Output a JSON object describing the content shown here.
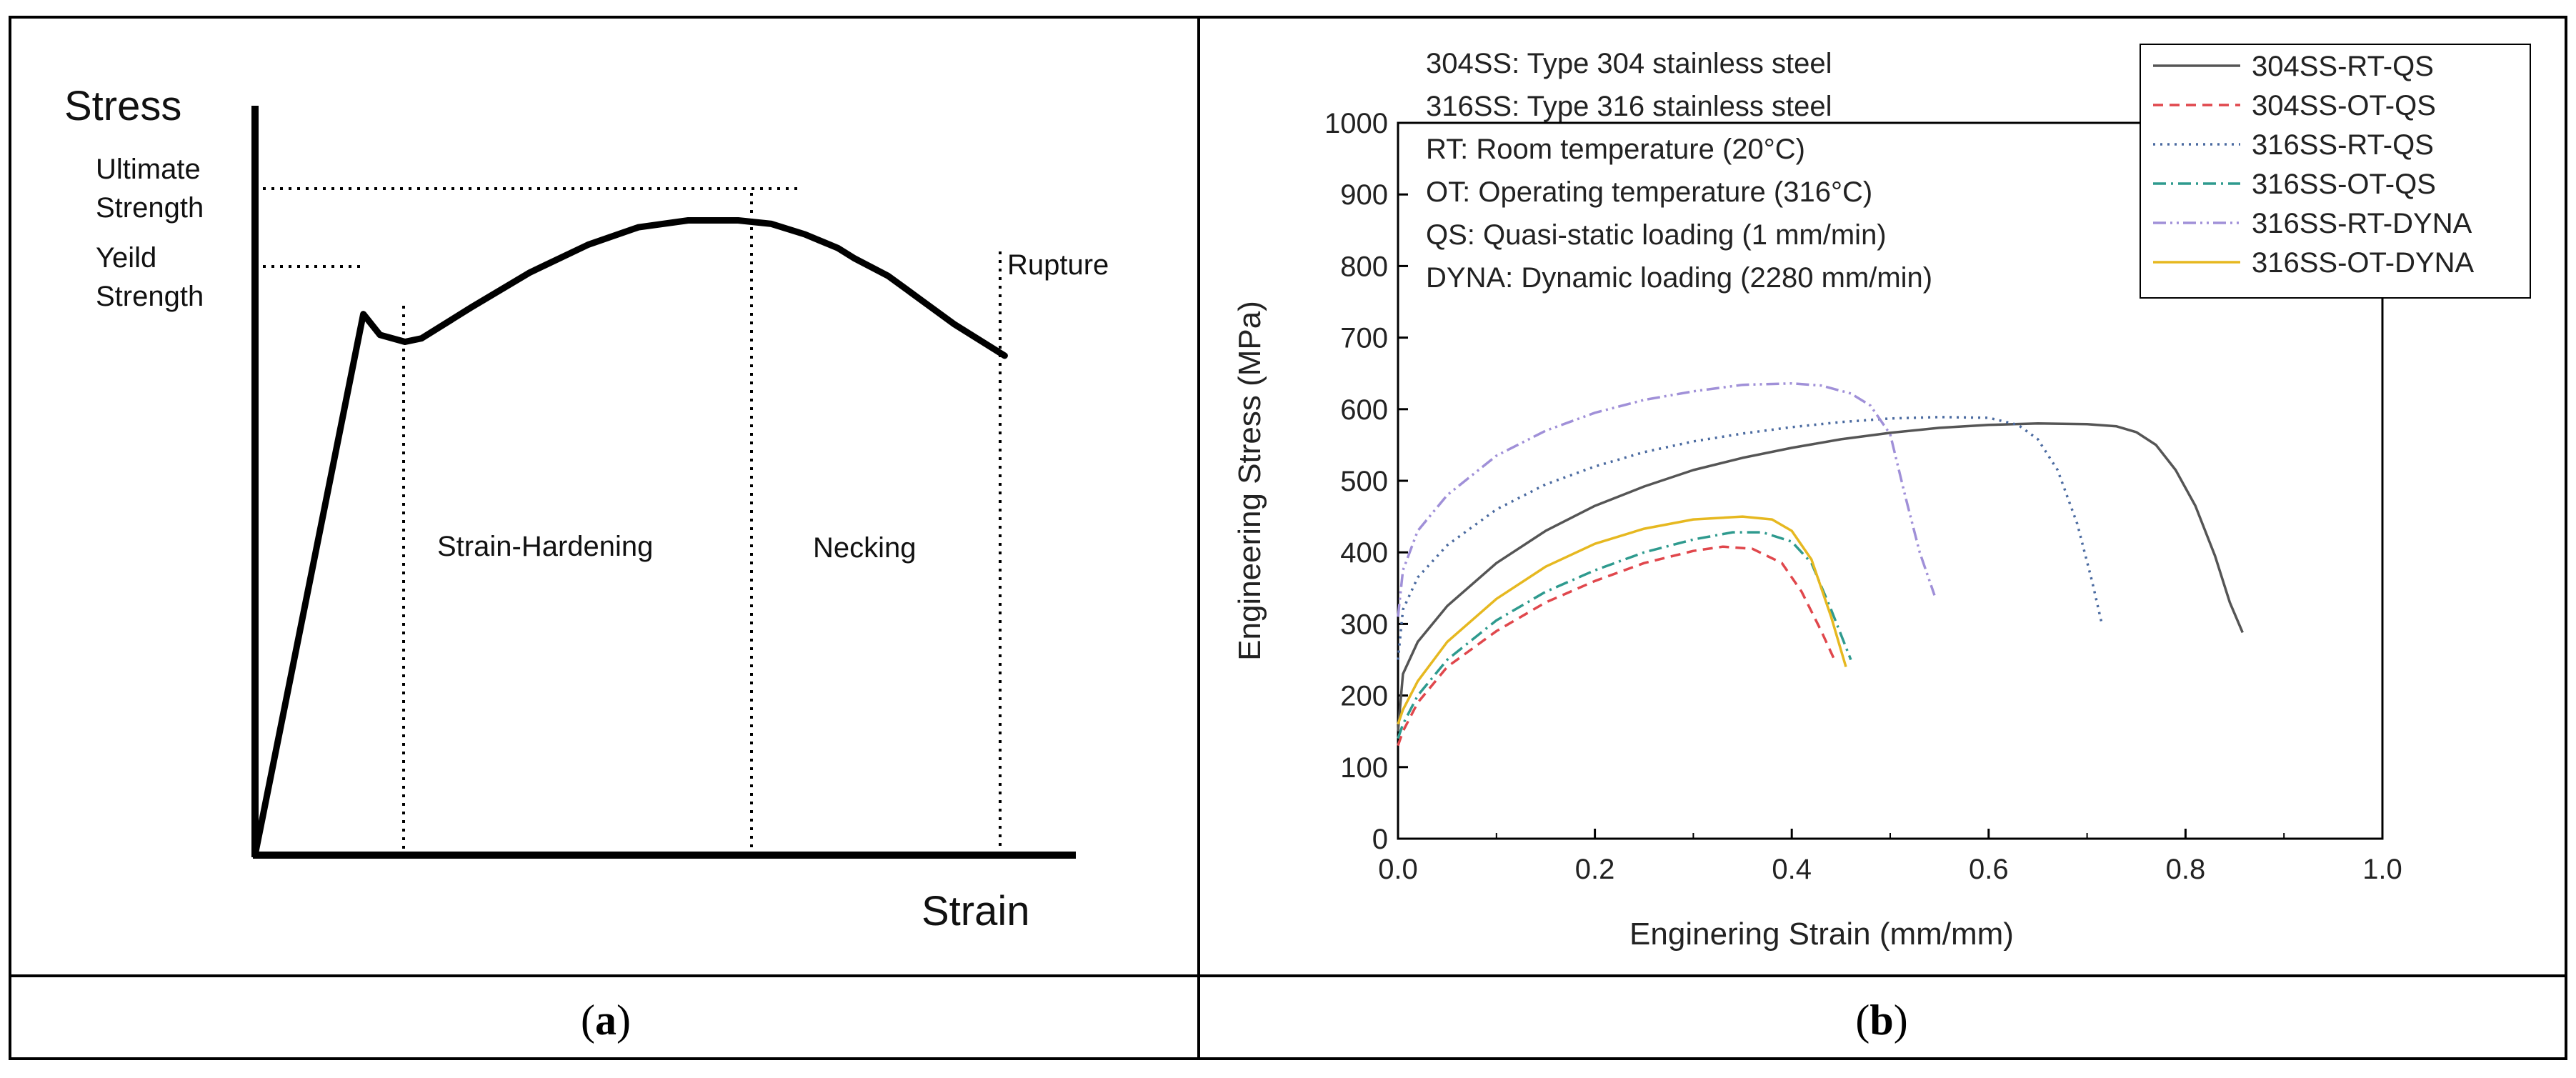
{
  "panel_a": {
    "caption_open": "(",
    "caption_letter": "a",
    "caption_close": ")",
    "y_axis_label": "Stress",
    "x_axis_label": "Strain",
    "ultimate_label_line1": "Ultimate",
    "ultimate_label_line2": "Strength",
    "yield_label_line1": "Yeild",
    "yield_label_line2": "Strength",
    "rupture_label": "Rupture",
    "region_strain_hardening": "Strain-Hardening",
    "region_necking": "Necking"
  },
  "panel_b": {
    "caption_open": "(",
    "caption_letter": "b",
    "caption_close": ")",
    "notes": [
      "304SS: Type 304 stainless steel",
      "316SS: Type 316 stainless steel",
      "RT: Room temperature (20°C)",
      "OT: Operating temperature (316°C)",
      "QS: Quasi-static loading (1 mm/min)",
      "DYNA: Dynamic loading (2280 mm/min)"
    ]
  },
  "chart_data": [
    {
      "type": "line",
      "title": "",
      "xlabel": "Strain",
      "ylabel": "Stress",
      "grid": false,
      "axis_ticks": false,
      "annotations": [
        "Ultimate Strength",
        "Yeild Strength",
        "Rupture",
        "Strain-Hardening",
        "Necking"
      ],
      "series": [
        {
          "x": [
            0.0,
            0.13,
            0.15,
            0.18,
            0.2,
            0.26,
            0.33,
            0.4,
            0.46,
            0.52,
            0.58,
            0.62,
            0.66,
            0.68,
            0.7,
            0.72,
            0.76,
            0.8,
            0.84,
            0.9
          ],
          "y": [
            0.0,
            0.78,
            0.75,
            0.74,
            0.745,
            0.79,
            0.84,
            0.88,
            0.905,
            0.915,
            0.915,
            0.91,
            0.895,
            0.885,
            0.875,
            0.86,
            0.835,
            0.8,
            0.765,
            0.72
          ]
        }
      ]
    },
    {
      "type": "line",
      "title": "",
      "xlabel": "Enginering Strain (mm/mm)",
      "ylabel": "Engineering Stress (MPa)",
      "xlim": [
        0.0,
        1.0
      ],
      "ylim": [
        0,
        1000
      ],
      "xticks": [
        "0.0",
        "0.2",
        "0.4",
        "0.6",
        "0.8",
        "1.0"
      ],
      "yticks": [
        "0",
        "100",
        "200",
        "300",
        "400",
        "500",
        "600",
        "700",
        "800",
        "900",
        "1000"
      ],
      "grid": false,
      "legend": "top-right",
      "series": [
        {
          "name": "304SS-RT-QS",
          "color": "#555555",
          "dash": "solid",
          "x": [
            0.0,
            0.005,
            0.02,
            0.05,
            0.1,
            0.15,
            0.2,
            0.25,
            0.3,
            0.35,
            0.4,
            0.45,
            0.5,
            0.55,
            0.6,
            0.65,
            0.7,
            0.73,
            0.75,
            0.77,
            0.79,
            0.81,
            0.83,
            0.845,
            0.858
          ],
          "y": [
            150,
            230,
            275,
            325,
            385,
            430,
            465,
            492,
            515,
            532,
            546,
            558,
            567,
            574,
            578,
            580,
            579,
            576,
            568,
            550,
            515,
            465,
            395,
            330,
            288
          ]
        },
        {
          "name": "304SS-OT-QS",
          "color": "#e0474c",
          "dash": "dashed",
          "x": [
            0.0,
            0.005,
            0.02,
            0.05,
            0.1,
            0.15,
            0.2,
            0.25,
            0.3,
            0.33,
            0.36,
            0.39,
            0.41,
            0.43,
            0.445
          ],
          "y": [
            130,
            150,
            190,
            240,
            290,
            330,
            360,
            385,
            402,
            408,
            405,
            385,
            345,
            290,
            245
          ]
        },
        {
          "name": "316SS-RT-QS",
          "color": "#4a6aa0",
          "dash": "dotted",
          "x": [
            0.0,
            0.005,
            0.02,
            0.05,
            0.1,
            0.15,
            0.2,
            0.25,
            0.3,
            0.35,
            0.4,
            0.45,
            0.5,
            0.55,
            0.6,
            0.63,
            0.65,
            0.67,
            0.69,
            0.705,
            0.715
          ],
          "y": [
            250,
            320,
            365,
            410,
            460,
            495,
            520,
            540,
            555,
            566,
            575,
            582,
            587,
            589,
            588,
            578,
            558,
            515,
            440,
            360,
            300
          ]
        },
        {
          "name": "316SS-OT-QS",
          "color": "#2e9a8e",
          "dash": "dashdot",
          "x": [
            0.0,
            0.005,
            0.02,
            0.05,
            0.1,
            0.15,
            0.2,
            0.25,
            0.3,
            0.34,
            0.37,
            0.4,
            0.42,
            0.44,
            0.46
          ],
          "y": [
            140,
            160,
            200,
            250,
            305,
            345,
            375,
            400,
            418,
            428,
            428,
            415,
            385,
            320,
            250
          ]
        },
        {
          "name": "316SS-RT-DYNA",
          "color": "#a090d8",
          "dash": "dashdotdot",
          "x": [
            0.0,
            0.005,
            0.02,
            0.05,
            0.1,
            0.15,
            0.2,
            0.25,
            0.3,
            0.35,
            0.4,
            0.43,
            0.46,
            0.48,
            0.5,
            0.515,
            0.53,
            0.545
          ],
          "y": [
            310,
            375,
            430,
            480,
            535,
            570,
            595,
            613,
            625,
            634,
            636,
            633,
            622,
            605,
            565,
            480,
            400,
            340
          ]
        },
        {
          "name": "316SS-OT-DYNA",
          "color": "#e6b820",
          "dash": "solid",
          "x": [
            0.0,
            0.005,
            0.02,
            0.05,
            0.1,
            0.15,
            0.2,
            0.25,
            0.3,
            0.35,
            0.38,
            0.4,
            0.42,
            0.44,
            0.455
          ],
          "y": [
            160,
            180,
            220,
            275,
            335,
            380,
            412,
            433,
            446,
            450,
            446,
            430,
            390,
            310,
            240
          ]
        }
      ]
    }
  ]
}
